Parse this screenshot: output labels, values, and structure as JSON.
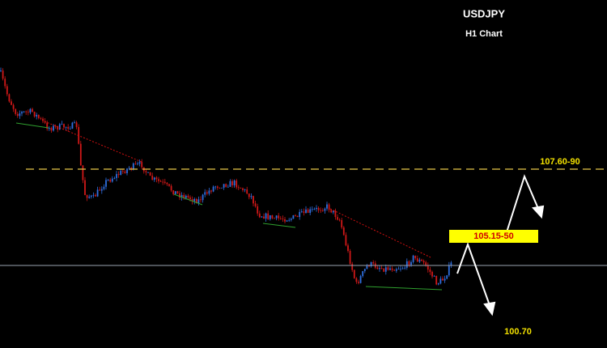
{
  "chart_data": {
    "title": "USDJPY",
    "subtitle": "H1 Chart",
    "annotations": {
      "upper_target": "107.60-90",
      "resistance": "105.15-50",
      "lower_target": "100.70"
    }
  }
}
